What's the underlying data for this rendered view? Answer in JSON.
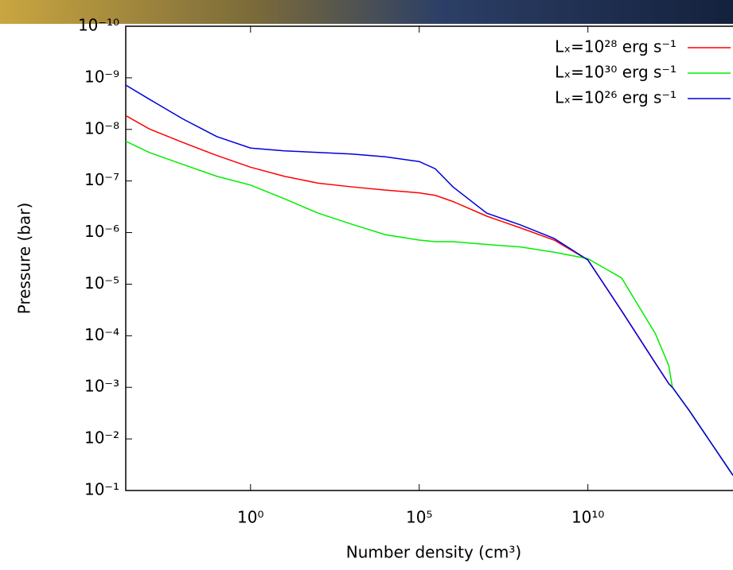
{
  "chart_data": {
    "type": "line",
    "x_label": "Number density (cm³)",
    "y_label": "Pressure (bar)",
    "xscale": "log",
    "yscale": "log",
    "grid": false,
    "legend": "upper right",
    "xlim": [
      0.0002,
      200000000000000.0
    ],
    "ylim": [
      0.1,
      1e-10
    ],
    "xticks": [
      {
        "value": 1,
        "label": "10⁰"
      },
      {
        "value": 100000,
        "label": "10⁵"
      },
      {
        "value": 10000000000,
        "label": "10¹⁰"
      }
    ],
    "yticks": [
      {
        "value": 1e-10,
        "label": "10⁻¹⁰"
      },
      {
        "value": 1e-09,
        "label": "10⁻⁹"
      },
      {
        "value": 1e-08,
        "label": "10⁻⁸"
      },
      {
        "value": 1e-07,
        "label": "10⁻⁷"
      },
      {
        "value": 1e-06,
        "label": "10⁻⁶"
      },
      {
        "value": 1e-05,
        "label": "10⁻⁵"
      },
      {
        "value": 0.0001,
        "label": "10⁻⁴"
      },
      {
        "value": 0.001,
        "label": "10⁻³"
      },
      {
        "value": 0.01,
        "label": "10⁻²"
      },
      {
        "value": 0.1,
        "label": "10⁻¹"
      }
    ],
    "x": [
      0.0002,
      0.001,
      0.01,
      0.1,
      1,
      10,
      100,
      1000,
      10000,
      100000,
      300000,
      1000000,
      10000000,
      100000000,
      1000000000,
      10000000000,
      100000000000,
      1000000000000,
      2500000000000,
      3200000000000,
      10000000000000,
      100000000000000,
      200000000000000
    ],
    "series": [
      {
        "name": "Lₓ=10²⁸ erg s⁻¹",
        "color": "#ff0000",
        "values": [
          5.4e-09,
          9.8e-09,
          1.8e-08,
          3.2e-08,
          5.4e-08,
          8.1e-08,
          1.1e-07,
          1.3e-07,
          1.5e-07,
          1.7e-07,
          1.9e-07,
          2.5e-07,
          4.8e-07,
          8.1e-07,
          1.4e-06,
          3.4e-06,
          3.3e-05,
          0.00034,
          0.00085,
          0.001,
          0.0028,
          0.026,
          0.051
        ]
      },
      {
        "name": "Lₓ=10³⁰ erg s⁻¹",
        "color": "#00ee00",
        "values": [
          1.7e-08,
          2.8e-08,
          4.8e-08,
          8.1e-08,
          1.2e-07,
          2.2e-07,
          4.2e-07,
          6.9e-07,
          1.1e-06,
          1.4e-06,
          1.5e-06,
          1.5e-06,
          1.7e-06,
          1.9e-06,
          2.4e-06,
          3.2e-06,
          7.6e-06,
          9.1e-05,
          0.00038,
          0.001,
          0.0028,
          0.026,
          0.051
        ]
      },
      {
        "name": "Lₓ=10²⁶ erg s⁻¹",
        "color": "#0000dd",
        "values": [
          1.38e-09,
          2.6e-09,
          6.3e-09,
          1.38e-08,
          2.3e-08,
          2.6e-08,
          2.8e-08,
          3e-08,
          3.4e-08,
          4.2e-08,
          5.8e-08,
          1.3e-07,
          4.2e-07,
          7.1e-07,
          1.3e-06,
          3.4e-06,
          3.3e-05,
          0.00034,
          0.00085,
          0.001,
          0.0028,
          0.026,
          0.051
        ]
      }
    ]
  }
}
